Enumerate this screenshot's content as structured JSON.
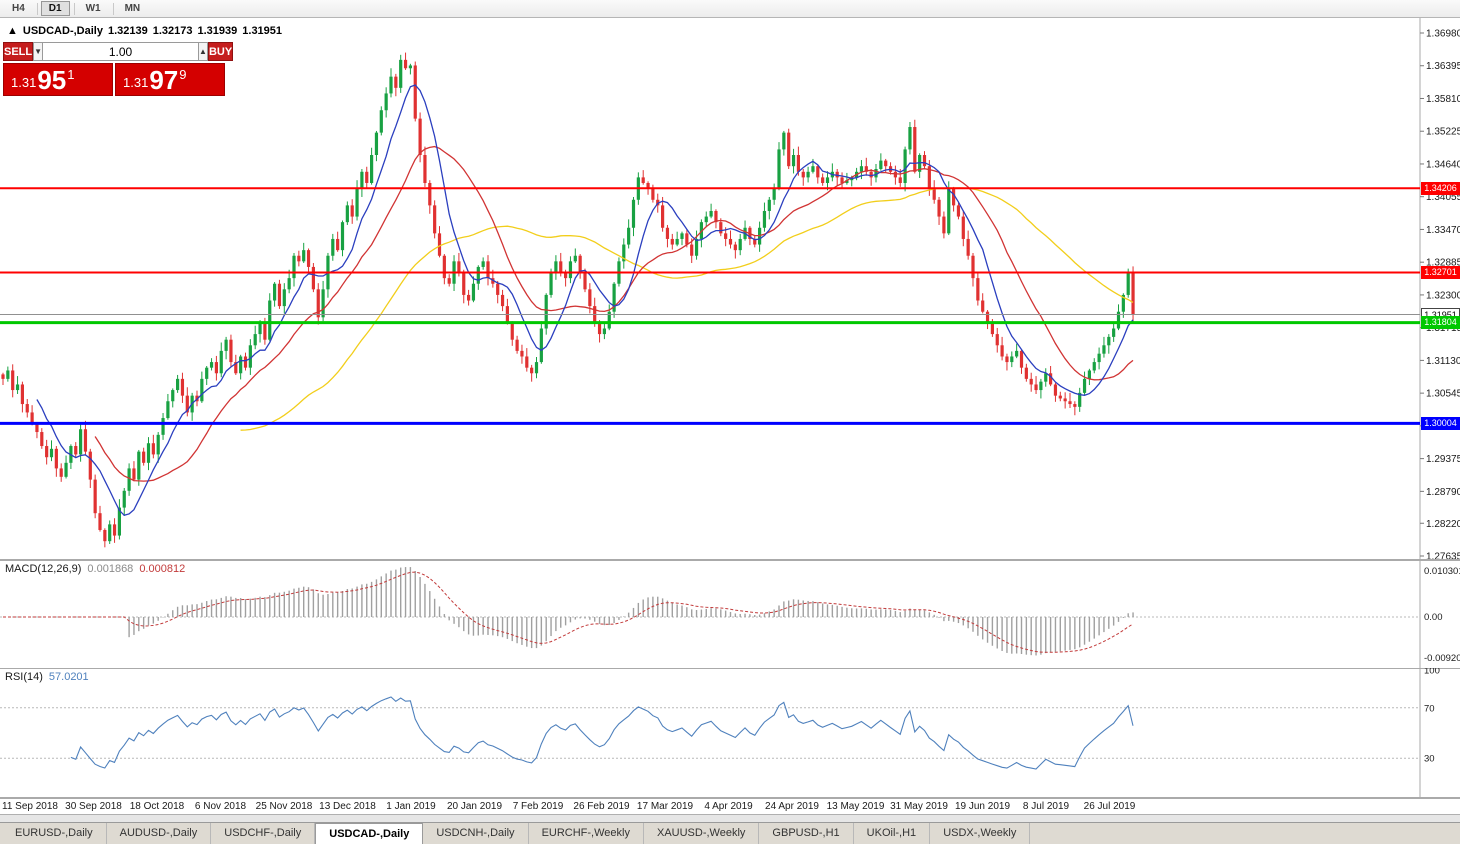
{
  "toolbar": {
    "timeframes": [
      "H4",
      "D1",
      "W1",
      "MN"
    ],
    "active": "D1"
  },
  "chart": {
    "symbol_line": {
      "arrow": "▲",
      "title": "USDCAD-,Daily",
      "open": "1.32139",
      "high": "1.32173",
      "low": "1.31939",
      "close": "1.31951"
    }
  },
  "trade": {
    "sell_label": "SELL",
    "buy_label": "BUY",
    "volume": "1.00",
    "spinner_down": "▼",
    "spinner_up": "▲",
    "sell_price": {
      "prefix": "1.31",
      "big": "95",
      "sup": "1"
    },
    "buy_price": {
      "prefix": "1.31",
      "big": "97",
      "sup": "9"
    }
  },
  "chart_data": {
    "type": "candlestick",
    "symbol": "USDCAD",
    "timeframe": "Daily",
    "colors": {
      "up": "#18A142",
      "down": "#E03131",
      "ma_fast": "#2B3FBF",
      "ma_mid": "#D13434",
      "ma_slow": "#F2CE1B"
    },
    "price_axis": {
      "max": 1.3698,
      "min": 1.27635,
      "tick_labels": [
        "1.36980",
        "1.36395",
        "1.35810",
        "1.35225",
        "1.34640",
        "1.34055",
        "1.33470",
        "1.32885",
        "1.32300",
        "1.31715",
        "1.31130",
        "1.30545",
        "1.29960",
        "1.29375",
        "1.28790",
        "1.28220",
        "1.27635"
      ]
    },
    "levels": [
      {
        "label": "1.34206",
        "price": 1.34206,
        "color": "#FF0000",
        "width": 2,
        "name": "resistance-line-1"
      },
      {
        "label": "1.32701",
        "price": 1.32701,
        "color": "#FF0000",
        "width": 2,
        "name": "resistance-line-2"
      },
      {
        "label": "1.31804",
        "price": 1.31804,
        "color": "#00C800",
        "width": 3,
        "name": "support-line-green"
      },
      {
        "label": "1.30004",
        "price": 1.30004,
        "color": "#0000FF",
        "width": 3,
        "name": "support-line-blue"
      }
    ],
    "current_price": {
      "label": "1.31951",
      "price": 1.31951,
      "line_color": "#909090"
    },
    "moving_averages": [
      {
        "period": 50,
        "color": "#F2CE1B"
      },
      {
        "period": 20,
        "color": "#D13434"
      },
      {
        "period": 8,
        "color": "#2B3FBF"
      }
    ],
    "x_labels": [
      "11 Sep 2018",
      "30 Sep 2018",
      "18 Oct 2018",
      "6 Nov 2018",
      "25 Nov 2018",
      "13 Dec 2018",
      "1 Jan 2019",
      "20 Jan 2019",
      "7 Feb 2019",
      "26 Feb 2019",
      "17 Mar 2019",
      "4 Apr 2019",
      "24 Apr 2019",
      "13 May 2019",
      "31 May 2019",
      "19 Jun 2019",
      "8 Jul 2019",
      "26 Jul 2019"
    ],
    "closes": [
      1.308,
      1.3095,
      1.306,
      1.307,
      1.3035,
      1.302,
      1.3,
      1.2985,
      1.296,
      1.294,
      1.2955,
      1.292,
      1.2905,
      1.293,
      1.296,
      1.2945,
      1.299,
      1.295,
      1.29,
      1.284,
      1.281,
      1.279,
      1.282,
      1.28,
      1.285,
      1.288,
      1.292,
      1.29,
      1.295,
      1.293,
      1.2965,
      1.2945,
      1.298,
      1.301,
      1.304,
      1.306,
      1.308,
      1.305,
      1.302,
      1.305,
      1.304,
      1.308,
      1.31,
      1.311,
      1.309,
      1.313,
      1.315,
      1.311,
      1.309,
      1.312,
      1.31,
      1.314,
      1.316,
      1.318,
      1.315,
      1.322,
      1.325,
      1.321,
      1.324,
      1.326,
      1.33,
      1.329,
      1.331,
      1.328,
      1.324,
      1.319,
      1.324,
      1.33,
      1.333,
      1.331,
      1.336,
      1.339,
      1.337,
      1.342,
      1.345,
      1.343,
      1.348,
      1.352,
      1.356,
      1.359,
      1.362,
      1.36,
      1.365,
      1.3635,
      1.364,
      1.3545,
      1.348,
      1.343,
      1.339,
      1.334,
      1.33,
      1.326,
      1.325,
      1.329,
      1.327,
      1.323,
      1.322,
      1.325,
      1.328,
      1.329,
      1.326,
      1.325,
      1.323,
      1.321,
      1.318,
      1.315,
      1.313,
      1.312,
      1.31,
      1.309,
      1.311,
      1.317,
      1.323,
      1.327,
      1.329,
      1.327,
      1.326,
      1.329,
      1.33,
      1.327,
      1.324,
      1.321,
      1.318,
      1.316,
      1.317,
      1.32,
      1.325,
      1.329,
      1.332,
      1.335,
      1.34,
      1.344,
      1.343,
      1.342,
      1.34,
      1.339,
      1.335,
      1.333,
      1.332,
      1.333,
      1.334,
      1.332,
      1.33,
      1.333,
      1.336,
      1.337,
      1.338,
      1.336,
      1.334,
      1.333,
      1.332,
      1.331,
      1.333,
      1.335,
      1.333,
      1.332,
      1.335,
      1.338,
      1.34,
      1.342,
      1.349,
      1.352,
      1.346,
      1.348,
      1.345,
      1.344,
      1.345,
      1.346,
      1.344,
      1.343,
      1.344,
      1.345,
      1.344,
      1.343,
      1.3435,
      1.344,
      1.345,
      1.346,
      1.345,
      1.344,
      1.3455,
      1.347,
      1.346,
      1.345,
      1.344,
      1.343,
      1.349,
      1.353,
      1.345,
      1.348,
      1.346,
      1.342,
      1.34,
      1.337,
      1.334,
      1.342,
      1.339,
      1.337,
      1.333,
      1.33,
      1.326,
      1.322,
      1.32,
      1.318,
      1.316,
      1.314,
      1.312,
      1.311,
      1.312,
      1.313,
      1.31,
      1.308,
      1.307,
      1.306,
      1.3075,
      1.309,
      1.307,
      1.305,
      1.3045,
      1.304,
      1.3035,
      1.303,
      1.3055,
      1.308,
      1.3095,
      1.311,
      1.3125,
      1.314,
      1.3155,
      1.317,
      1.32,
      1.323,
      1.327,
      1.3195
    ],
    "macd": {
      "label": "MACD(12,26,9)",
      "fast": 12,
      "slow": 26,
      "signal": 9,
      "main_value": "0.001868",
      "signal_value": "0.000812",
      "axis_labels": [
        "0.0103011",
        "0.00",
        "-0.0092013"
      ],
      "axis_max": 0.0103011,
      "axis_min": -0.0092013,
      "hist_color": "#A0A0A0",
      "signal_color": "#C23B3B"
    },
    "rsi": {
      "label": "RSI(14)",
      "period": 14,
      "value": "57.0201",
      "axis_labels": [
        "100",
        "70",
        "30"
      ],
      "guide_levels": [
        70,
        30
      ],
      "color": "#4F81BD"
    }
  },
  "tabs": {
    "items": [
      "EURUSD-,Daily",
      "AUDUSD-,Daily",
      "USDCHF-,Daily",
      "USDCAD-,Daily",
      "USDCNH-,Daily",
      "EURCHF-,Weekly",
      "XAUUSD-,Weekly",
      "GBPUSD-,H1",
      "UKOil-,H1",
      "USDX-,Weekly"
    ],
    "active_index": 3
  }
}
